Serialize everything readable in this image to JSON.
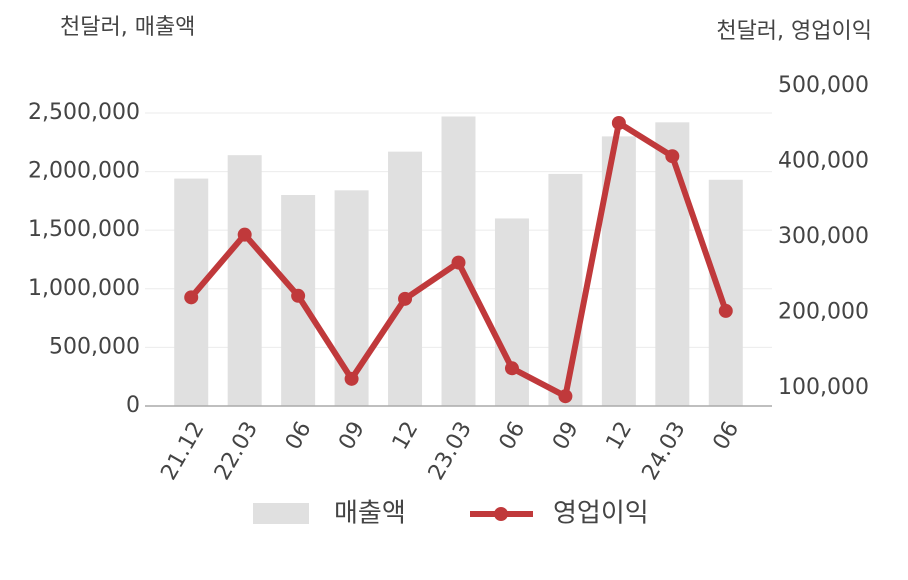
{
  "chart_data": {
    "type": "bar-line",
    "y_label": "천달러, 매출액",
    "y2_label": "천달러, 영업이익",
    "categories": [
      "21.12",
      "22.03",
      "06",
      "09",
      "12",
      "23.03",
      "06",
      "09",
      "12",
      "24.03",
      "06"
    ],
    "series": [
      {
        "name": "매출액",
        "type": "bar",
        "color": "#e0e0e0",
        "values": [
          1940000,
          2140000,
          1800000,
          1840000,
          2170000,
          2470000,
          1600000,
          1980000,
          2300000,
          2420000,
          1930000
        ]
      },
      {
        "name": "영업이익",
        "type": "line",
        "axis": "y2",
        "color": "#c0393b",
        "values": [
          220000,
          303000,
          222000,
          112000,
          218000,
          266000,
          126000,
          89000,
          451000,
          407000,
          202000
        ]
      }
    ],
    "ylim": [
      0,
      2730000
    ],
    "yticks": [
      0,
      {
        "value": 500000,
        "label": "500,000"
      },
      {
        "value": 1000000,
        "label": "1,000,000"
      },
      {
        "value": 1500000,
        "label": "1,500,000"
      },
      {
        "value": 2000000,
        "label": "2,000,000"
      },
      {
        "value": 2500000,
        "label": "2,500,000"
      }
    ],
    "y2lim": [
      76000,
      500000
    ],
    "y2ticks": [
      {
        "value": 100000,
        "label": "100,000"
      },
      {
        "value": 200000,
        "label": "200,000"
      },
      {
        "value": 300000,
        "label": "300,000"
      },
      {
        "value": 400000,
        "label": "400,000"
      },
      {
        "value": 500000,
        "label": "500,000"
      }
    ],
    "grid": true
  }
}
